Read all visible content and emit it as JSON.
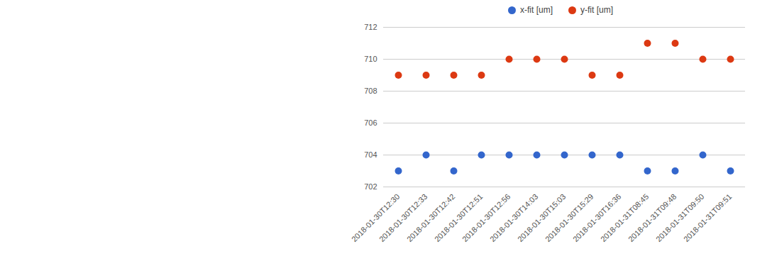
{
  "chart_data": {
    "type": "scatter",
    "categories": [
      "2018-01-30T12:30",
      "2018-01-30T12:33",
      "2018-01-30T12:42",
      "2018-01-30T12:51",
      "2018-01-30T12:56",
      "2018-01-30T14:03",
      "2018-01-30T15:03",
      "2018-01-30T15:29",
      "2018-01-30T16:36",
      "2018-01-31T08:45",
      "2018-01-31T09:48",
      "2018-01-31T09:50",
      "2018-01-31T09:51"
    ],
    "series": [
      {
        "name": "x-fit [um]",
        "color": "#3366cc",
        "values": [
          703,
          704,
          703,
          704,
          704,
          704,
          704,
          704,
          704,
          703,
          703,
          704,
          703
        ]
      },
      {
        "name": "y-fit [um]",
        "color": "#dc3912",
        "values": [
          709,
          709,
          709,
          709,
          710,
          710,
          710,
          709,
          709,
          711,
          711,
          710,
          710
        ]
      }
    ],
    "ylim": [
      702,
      712
    ],
    "yticks": [
      702,
      704,
      706,
      708,
      710,
      712
    ],
    "grid": true,
    "legend": "top"
  }
}
